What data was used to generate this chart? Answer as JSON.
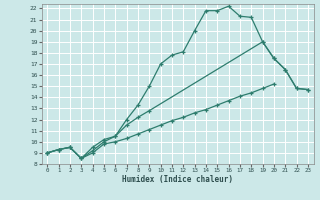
{
  "xlabel": "Humidex (Indice chaleur)",
  "bg_color": "#cce8e8",
  "grid_color": "#ffffff",
  "line_color": "#2e7d6e",
  "xlim": [
    -0.5,
    23.5
  ],
  "ylim": [
    8,
    22.4
  ],
  "xticks": [
    0,
    1,
    2,
    3,
    4,
    5,
    6,
    7,
    8,
    9,
    10,
    11,
    12,
    13,
    14,
    15,
    16,
    17,
    18,
    19,
    20,
    21,
    22,
    23
  ],
  "yticks": [
    8,
    9,
    10,
    11,
    12,
    13,
    14,
    15,
    16,
    17,
    18,
    19,
    20,
    21,
    22
  ],
  "line1_x": [
    0,
    1,
    2,
    3,
    4,
    5,
    6,
    7,
    8,
    9,
    10,
    11,
    12,
    13,
    14,
    15,
    16,
    17,
    18,
    19,
    20,
    21,
    22,
    23
  ],
  "line1_y": [
    9.0,
    9.3,
    9.5,
    8.5,
    9.5,
    10.2,
    10.5,
    12.0,
    13.3,
    15.0,
    17.0,
    17.8,
    18.1,
    20.0,
    21.8,
    21.8,
    22.2,
    21.3,
    21.2,
    19.0,
    17.5,
    16.5,
    14.8,
    14.7
  ],
  "line2_x": [
    0,
    1,
    2,
    3,
    4,
    5,
    6,
    7,
    8,
    9,
    19,
    20,
    21,
    22,
    23
  ],
  "line2_y": [
    9.0,
    9.3,
    9.5,
    8.5,
    9.2,
    10.0,
    10.5,
    11.5,
    12.2,
    12.8,
    19.0,
    17.5,
    16.5,
    14.8,
    14.7
  ],
  "line3_x": [
    0,
    1,
    2,
    3,
    4,
    5,
    6,
    7,
    8,
    9,
    10,
    11,
    12,
    13,
    14,
    15,
    16,
    17,
    18,
    19,
    20,
    21,
    22,
    23
  ],
  "line3_y": [
    9.0,
    9.3,
    9.5,
    8.5,
    9.0,
    9.8,
    10.0,
    10.3,
    10.7,
    11.1,
    11.5,
    11.9,
    12.2,
    12.6,
    12.9,
    13.3,
    13.7,
    14.1,
    14.4,
    14.8,
    15.2,
    null,
    null,
    null
  ]
}
